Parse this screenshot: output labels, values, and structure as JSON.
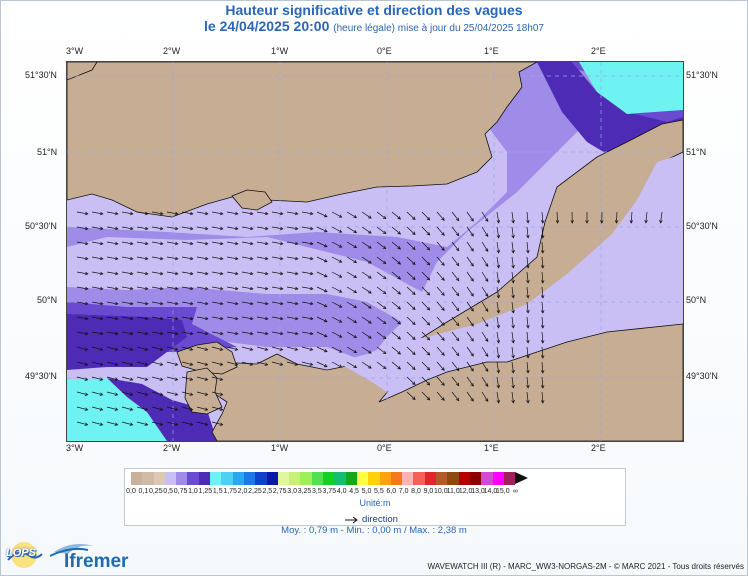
{
  "header": {
    "title": "Hauteur significative et direction des vagues",
    "date": "le 24/04/2025 20:00",
    "update_note": "(heure légale) mise à jour du 25/04/2025 18h07"
  },
  "map": {
    "lon_labels": [
      "3°W",
      "2°W",
      "1°W",
      "0°E",
      "1°E",
      "2°E"
    ],
    "lat_labels": [
      "51°30'N",
      "51°N",
      "50°30'N",
      "50°N",
      "49°30'N"
    ],
    "lon_range": [
      -3.0,
      2.8
    ],
    "lat_range": [
      49.05,
      51.58
    ],
    "land_color": "#c6ad94",
    "grid_color": "#9aa8e8"
  },
  "legend": {
    "colors": [
      "#c9b29b",
      "#d1bba5",
      "#dcc8b6",
      "#c9bff4",
      "#9f8ce8",
      "#6a4ad0",
      "#4e2bb4",
      "#6ff2f2",
      "#4ad2f0",
      "#2ba6f0",
      "#1c78e6",
      "#1040cc",
      "#0c18a6",
      "#e0f6a0",
      "#c8f078",
      "#9ef05a",
      "#52e052",
      "#14cf2a",
      "#12bf6f",
      "#12a818",
      "#ffff44",
      "#ffd20c",
      "#ffa20c",
      "#f57b1a",
      "#ffb4b4",
      "#f5605a",
      "#e0262a",
      "#b45a2a",
      "#8c4a10",
      "#b60000",
      "#8a0000",
      "#d24ad2",
      "#ff00ff",
      "#a0205a"
    ],
    "tick_labels": [
      "0,0",
      "0,1",
      "0,25",
      "0,5",
      "0,75",
      "1,0",
      "1,25",
      "1,5",
      "1,75",
      "2,0",
      "2,25",
      "2,5",
      "2,75",
      "3,0",
      "3,25",
      "3,5",
      "3,75",
      "4,0",
      "4,5",
      "5,0",
      "5,5",
      "6,0",
      "7,0",
      "8,0",
      "9,0",
      "10,0",
      "11,0",
      "12,0",
      "13,0",
      "14,0",
      "15,0",
      "∞"
    ],
    "unit": "Unité:m",
    "direction_label": "direction"
  },
  "stats": "Moy. : 0,79 m   -   Min. : 0,00 m / Max. : 2,38 m",
  "footer": {
    "lops_logo": "LOPS",
    "ifremer_logo": "Ifremer",
    "credits": "WAVEWATCH III (R) - MARC_WW3-NORGAS-2M - © MARC 2021 - Tous droits réservés"
  }
}
